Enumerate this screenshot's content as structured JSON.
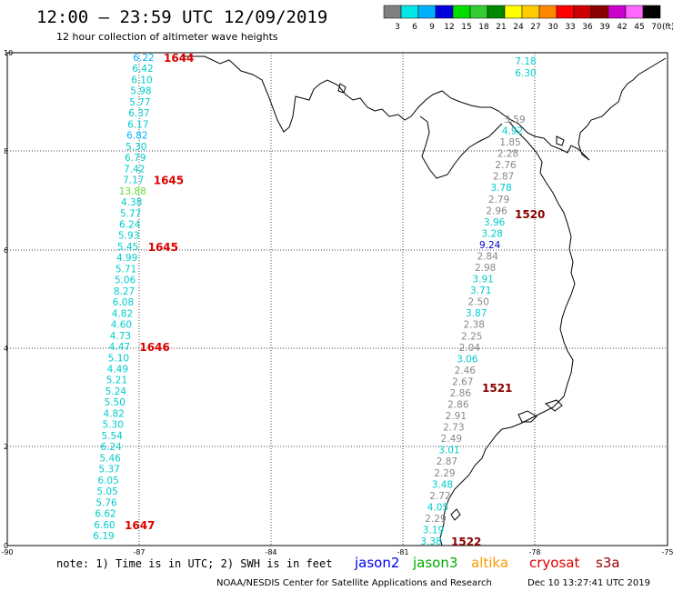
{
  "header": {
    "title": "12:00 – 23:59 UTC 12/09/2019",
    "subtitle": "12 hour collection of altimeter wave heights"
  },
  "scale": {
    "labels": [
      "3",
      "6",
      "9",
      "12",
      "15",
      "18",
      "21",
      "24",
      "27",
      "30",
      "33",
      "36",
      "39",
      "42",
      "45",
      "70"
    ],
    "unit": "(ft)",
    "colors": [
      "#808080",
      "#00e5e5",
      "#00b0ff",
      "#0000dd",
      "#00dd00",
      "#33cc33",
      "#008800",
      "#ffff00",
      "#ffcc00",
      "#ff8800",
      "#ff0000",
      "#cc0000",
      "#880000",
      "#cc00cc",
      "#ff66ff",
      "#000000"
    ]
  },
  "axes": {
    "x_ticks": [
      "-90",
      "-87",
      "-84",
      "-81",
      "-78",
      "-75"
    ],
    "y_ticks": [
      "0",
      "2",
      "4",
      "6",
      "8",
      "10"
    ]
  },
  "west_pass": {
    "values": [
      "6.22",
      "6.42",
      "6.10",
      "5.98",
      "5.77",
      "6.37",
      "6.17",
      "6.82",
      "5.30",
      "6.79",
      "7.42",
      "7.17",
      "13.88",
      "4.38",
      "5.77",
      "6.24",
      "5.93",
      "5.45",
      "4.99",
      "5.71",
      "5.06",
      "8.27",
      "6.08",
      "4.82",
      "4.60",
      "4.73",
      "4.47",
      "5.10",
      "4.49",
      "5.21",
      "5.24",
      "5.50",
      "4.82",
      "5.30",
      "5.54",
      "6.24",
      "5.46",
      "5.37",
      "6.05",
      "5.05",
      "5.76",
      "6.62",
      "6.60",
      "6.19"
    ],
    "colors": [
      "#00b0ff",
      "#00cccc",
      "#00cccc",
      "#00cccc",
      "#00cccc",
      "#00cccc",
      "#00cccc",
      "#00b0ff",
      "#00cccc",
      "#00cccc",
      "#00cccc",
      "#00cccc",
      "#66dd33",
      "#00cccc",
      "#00cccc",
      "#00cccc",
      "#00cccc",
      "#00cccc",
      "#00cccc",
      "#00cccc",
      "#00cccc",
      "#00cccc",
      "#00cccc",
      "#00cccc",
      "#00cccc",
      "#00cccc",
      "#00cccc",
      "#00cccc",
      "#00cccc",
      "#00cccc",
      "#00cccc",
      "#00cccc",
      "#00cccc",
      "#00cccc",
      "#00cccc",
      "#00cccc",
      "#00cccc",
      "#00cccc",
      "#00cccc",
      "#00cccc",
      "#00cccc",
      "#00cccc",
      "#00cccc",
      "#00cccc"
    ],
    "times": [
      "1644",
      "1645",
      "1645",
      "1646",
      "1647"
    ],
    "time_color": "#dd0000"
  },
  "east_pass": {
    "values": [
      "7.18",
      "6.30",
      "3.59",
      "4.92",
      "1.85",
      "2.28",
      "2.76",
      "2.87",
      "3.78",
      "2.79",
      "2.96",
      "3.96",
      "3.28",
      "9.24",
      "2.84",
      "2.98",
      "3.91",
      "3.71",
      "2.50",
      "3.87",
      "2.38",
      "2.25",
      "2.04",
      "3.06",
      "2.46",
      "2.67",
      "2.86",
      "2.86",
      "2.91",
      "2.73",
      "2.49",
      "3.01",
      "2.87",
      "2.29",
      "3.48",
      "2.72",
      "4.05",
      "2.29",
      "3.19",
      "3.38"
    ],
    "colors": [
      "#00cccc",
      "#00cccc",
      "#888888",
      "#00cccc",
      "#888888",
      "#888888",
      "#888888",
      "#888888",
      "#00cccc",
      "#888888",
      "#888888",
      "#00cccc",
      "#00cccc",
      "#0000cc",
      "#888888",
      "#888888",
      "#00cccc",
      "#00cccc",
      "#888888",
      "#00cccc",
      "#888888",
      "#888888",
      "#888888",
      "#00cccc",
      "#888888",
      "#888888",
      "#888888",
      "#888888",
      "#888888",
      "#888888",
      "#888888",
      "#00cccc",
      "#888888",
      "#888888",
      "#00cccc",
      "#888888",
      "#00cccc",
      "#888888",
      "#00cccc",
      "#00cccc"
    ],
    "times": [
      "1520",
      "1521",
      "1522"
    ],
    "time_color": "#880000"
  },
  "footer": {
    "note": "note: 1) Time is in UTC; 2) SWH is in feet",
    "satellites": [
      {
        "name": "jason2",
        "color": "#0000ee"
      },
      {
        "name": "jason3",
        "color": "#00aa00"
      },
      {
        "name": "altika",
        "color": "#ff9900"
      },
      {
        "name": "cryosat",
        "color": "#dd0000"
      },
      {
        "name": "s3a",
        "color": "#990000"
      }
    ],
    "credit": "NOAA/NESDIS Center for Satellite Applications and Research",
    "timestamp": "Dec 10 13:27:41 UTC 2019"
  }
}
